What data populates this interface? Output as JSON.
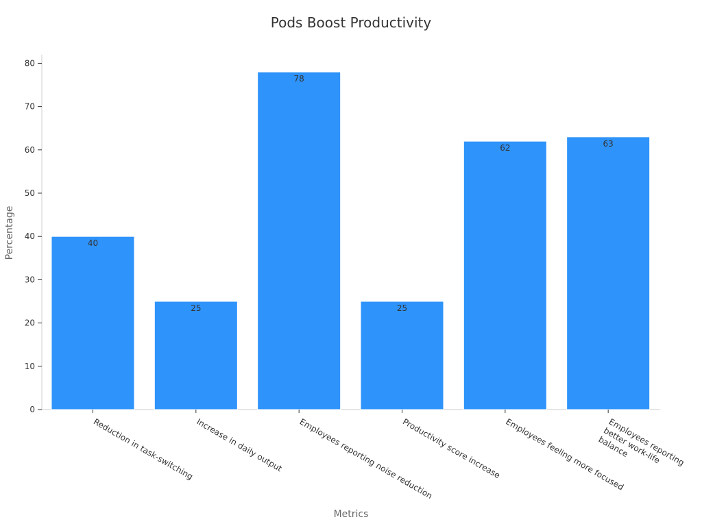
{
  "chart_data": {
    "type": "bar",
    "title": "Pods Boost Productivity",
    "xlabel": "Metrics",
    "ylabel": "Percentage",
    "categories": [
      [
        "Reduction in task-switching"
      ],
      [
        "Increase in daily output"
      ],
      [
        "Employees reporting noise reduction"
      ],
      [
        "Productivity score increase"
      ],
      [
        "Employees feeling more focused"
      ],
      [
        "Employees reporting",
        "better work-life",
        "balance"
      ]
    ],
    "values": [
      40,
      25,
      78,
      25,
      62,
      63
    ],
    "ylim": [
      0,
      82
    ],
    "yticks": [
      0,
      10,
      20,
      30,
      40,
      50,
      60,
      70,
      80
    ],
    "grid": false,
    "bar_color": "#2e93fa",
    "bar_edge_color": "#ffffff"
  }
}
